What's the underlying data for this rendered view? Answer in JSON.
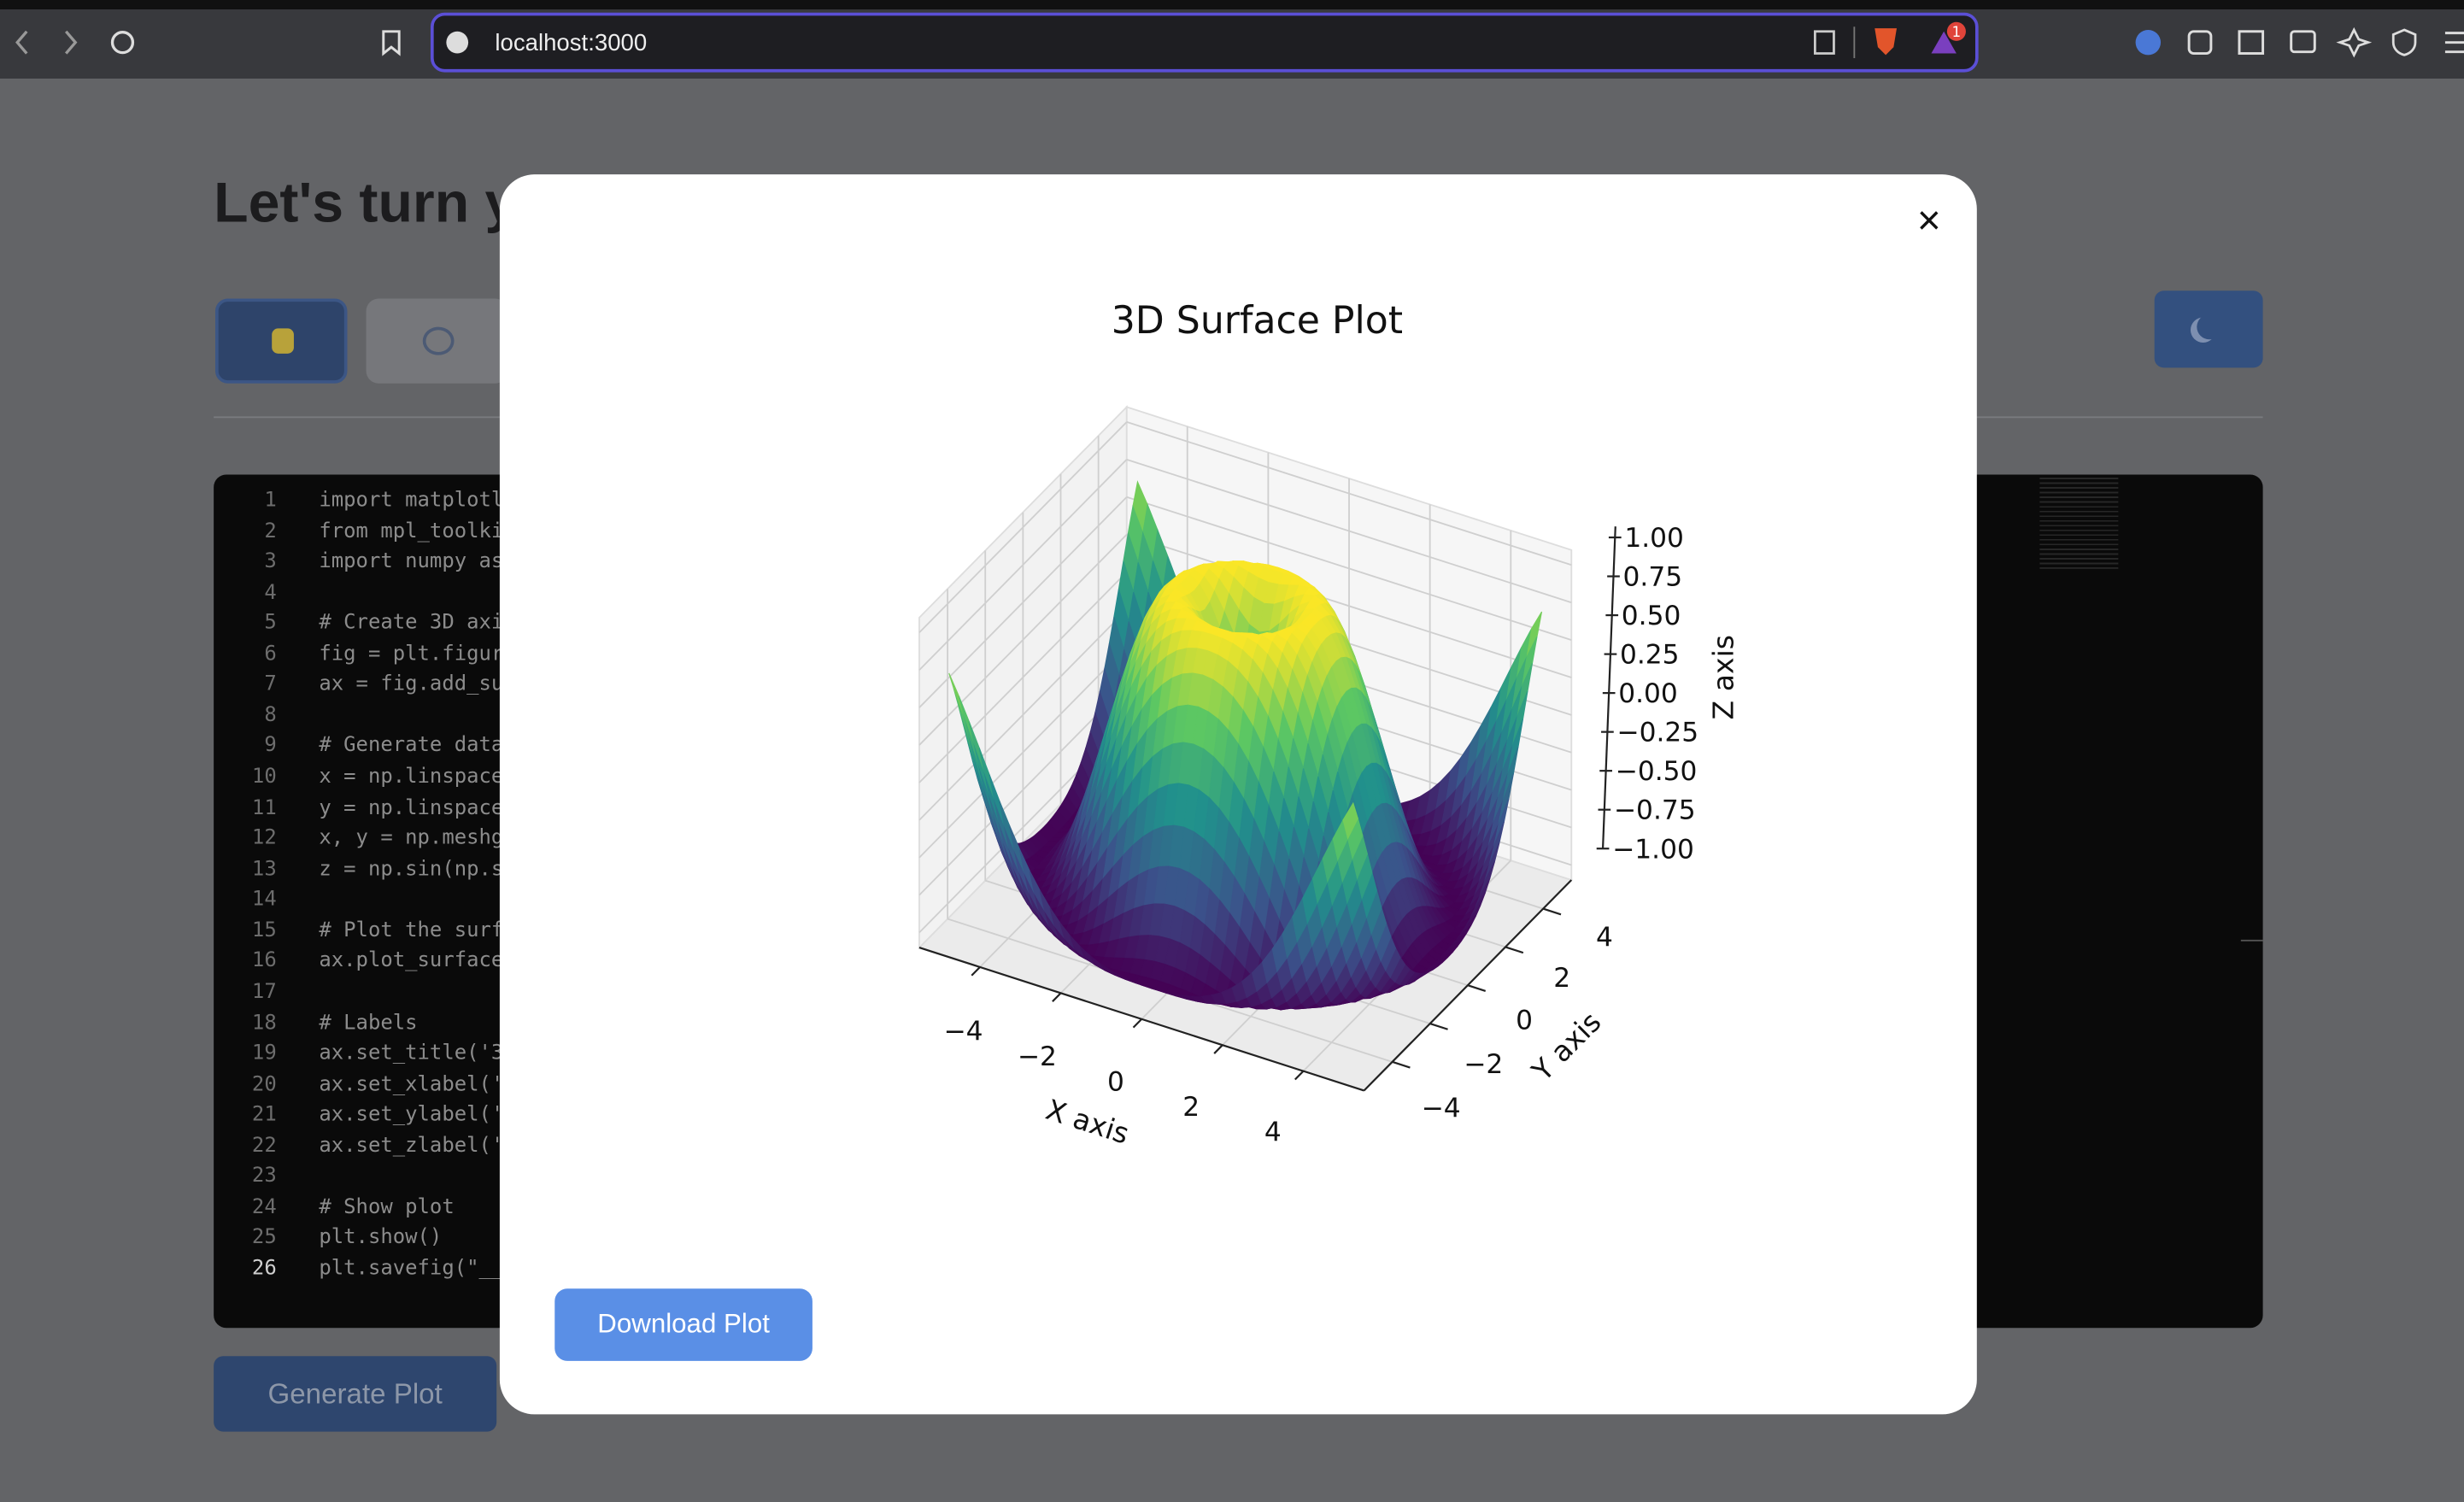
{
  "browser": {
    "url": "localhost:3000",
    "notification_count": 1
  },
  "page": {
    "heading": "Let's turn y",
    "generate_button": "Generate Plot"
  },
  "editor": {
    "lines": [
      {
        "n": 1,
        "text": "import matplotl"
      },
      {
        "n": 2,
        "text": "from mpl_toolki"
      },
      {
        "n": 3,
        "text": "import numpy as"
      },
      {
        "n": 4
      },
      {
        "n": 5,
        "text": "# Create 3D axi"
      },
      {
        "n": 6,
        "text": "fig = plt.figur"
      },
      {
        "n": 7,
        "text": "ax = fig.add_su"
      },
      {
        "n": 8
      },
      {
        "n": 9,
        "text": "# Generate data"
      },
      {
        "n": 10,
        "text": "x = np.linspace"
      },
      {
        "n": 11,
        "text": "y = np.linspace"
      },
      {
        "n": 12,
        "text": "x, y = np.meshg"
      },
      {
        "n": 13,
        "text": "z = np.sin(np.s"
      },
      {
        "n": 14
      },
      {
        "n": 15,
        "text": "# Plot the surf"
      },
      {
        "n": 16,
        "text": "ax.plot_surface"
      },
      {
        "n": 17
      },
      {
        "n": 18,
        "text": "# Labels"
      },
      {
        "n": 19,
        "text": "ax.set_title('3"
      },
      {
        "n": 20,
        "text": "ax.set_xlabel('"
      },
      {
        "n": 21,
        "text": "ax.set_ylabel('"
      },
      {
        "n": 22,
        "text": "ax.set_zlabel('"
      },
      {
        "n": 23
      },
      {
        "n": 24,
        "text": "# Show plot"
      },
      {
        "n": 25,
        "text": "plt.show()"
      },
      {
        "n": 26,
        "text": "plt.savefig(\"__"
      }
    ]
  },
  "modal": {
    "close": "×",
    "download_button": "Download Plot",
    "plot": {
      "title": "3D Surface Plot",
      "x_label": "X axis",
      "y_label": "Y axis",
      "z_label": "Z axis",
      "x_ticks": [
        "−4",
        "−2",
        "0",
        "2",
        "4"
      ],
      "y_ticks": [
        "−4",
        "−2",
        "0",
        "2",
        "4"
      ],
      "z_ticks": [
        "−1.00",
        "−0.75",
        "−0.50",
        "−0.25",
        "0.00",
        "0.25",
        "0.50",
        "0.75",
        "1.00"
      ]
    }
  }
}
